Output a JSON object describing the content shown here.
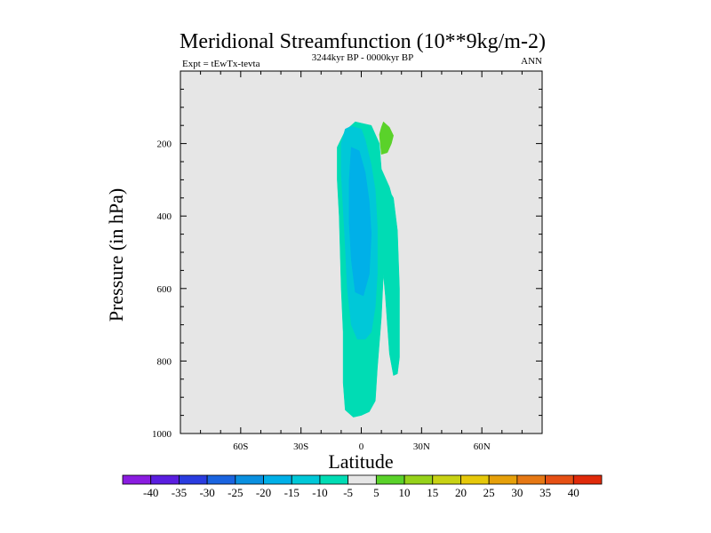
{
  "chart_data": {
    "type": "contour",
    "title": "Meridional Streamfunction (10**9kg/m-2)",
    "subtitle_left": "Expt = tEwTx-tevta",
    "subtitle_center": "3244kyr BP - 0000kyr BP",
    "subtitle_right": "ANN",
    "xlabel": "Latitude",
    "ylabel": "Pressure (in hPa)",
    "xlim": [
      -90,
      90
    ],
    "ylim": [
      1000,
      0
    ],
    "x_ticks": [
      {
        "value": -60,
        "label": "60S"
      },
      {
        "value": -30,
        "label": "30S"
      },
      {
        "value": 0,
        "label": "0"
      },
      {
        "value": 30,
        "label": "30N"
      },
      {
        "value": 60,
        "label": "60N"
      }
    ],
    "y_ticks": [
      {
        "value": 200,
        "label": "200"
      },
      {
        "value": 400,
        "label": "400"
      },
      {
        "value": 600,
        "label": "600"
      },
      {
        "value": 800,
        "label": "800"
      },
      {
        "value": 1000,
        "label": "1000"
      }
    ],
    "background_color": "#e6e6e6",
    "colorbar": {
      "levels": [
        "-40",
        "-35",
        "-30",
        "-25",
        "-20",
        "-15",
        "-10",
        "-5",
        "5",
        "10",
        "15",
        "20",
        "25",
        "30",
        "35",
        "40"
      ],
      "colors": [
        "#8a1ce0",
        "#5a1ee0",
        "#2a3ce0",
        "#1a64e0",
        "#0a90e0",
        "#00b0e8",
        "#00c8d8",
        "#00dcb4",
        "#e6e6e6",
        "#5ad22a",
        "#96d21a",
        "#c8d214",
        "#e6c80a",
        "#e6a00a",
        "#e67814",
        "#e65014",
        "#e02a0a"
      ]
    },
    "regions": [
      {
        "name": "contour-band-minus5-to-0",
        "level": "-5 to 0",
        "color": "#00dcb4",
        "points": [
          [
            -12,
            210
          ],
          [
            -8,
            165
          ],
          [
            -3,
            140
          ],
          [
            5,
            150
          ],
          [
            9,
            200
          ],
          [
            10,
            270
          ],
          [
            14,
            320
          ],
          [
            15,
            340
          ],
          [
            16,
            350
          ],
          [
            18,
            440
          ],
          [
            19,
            600
          ],
          [
            19,
            700
          ],
          [
            19,
            790
          ],
          [
            18,
            835
          ],
          [
            16,
            840
          ],
          [
            14,
            780
          ],
          [
            12,
            620
          ],
          [
            11,
            560
          ],
          [
            10,
            680
          ],
          [
            8,
            820
          ],
          [
            7,
            910
          ],
          [
            4,
            940
          ],
          [
            0,
            950
          ],
          [
            -4,
            955
          ],
          [
            -8,
            935
          ],
          [
            -9,
            860
          ],
          [
            -9,
            720
          ],
          [
            -10,
            600
          ],
          [
            -11,
            400
          ],
          [
            -12,
            300
          ]
        ]
      },
      {
        "name": "contour-band-minus10-to-minus5",
        "level": "-10 to -5",
        "color": "#00c8d8",
        "points": [
          [
            -10,
            200
          ],
          [
            -8,
            160
          ],
          [
            -5,
            152
          ],
          [
            0,
            160
          ],
          [
            2,
            190
          ],
          [
            5,
            260
          ],
          [
            7,
            330
          ],
          [
            8,
            430
          ],
          [
            8,
            560
          ],
          [
            7,
            650
          ],
          [
            5,
            720
          ],
          [
            2,
            740
          ],
          [
            -2,
            740
          ],
          [
            -5,
            700
          ],
          [
            -7,
            600
          ],
          [
            -8,
            480
          ],
          [
            -9,
            380
          ],
          [
            -10,
            280
          ]
        ]
      },
      {
        "name": "contour-band-minus15-to-minus10",
        "level": "-15 to -10",
        "color": "#00b0e8",
        "points": [
          [
            -5,
            210
          ],
          [
            -1,
            220
          ],
          [
            2,
            280
          ],
          [
            4,
            360
          ],
          [
            5,
            450
          ],
          [
            4,
            560
          ],
          [
            1,
            620
          ],
          [
            -3,
            610
          ],
          [
            -5,
            520
          ],
          [
            -6,
            420
          ],
          [
            -6,
            300
          ]
        ]
      },
      {
        "name": "contour-band-plus5-to-plus10",
        "level": "5 to 10",
        "color": "#5ad22a",
        "points": [
          [
            11,
            140
          ],
          [
            14,
            155
          ],
          [
            16,
            178
          ],
          [
            15,
            200
          ],
          [
            13,
            225
          ],
          [
            10,
            230
          ],
          [
            9,
            175
          ],
          [
            10,
            155
          ]
        ]
      }
    ]
  }
}
